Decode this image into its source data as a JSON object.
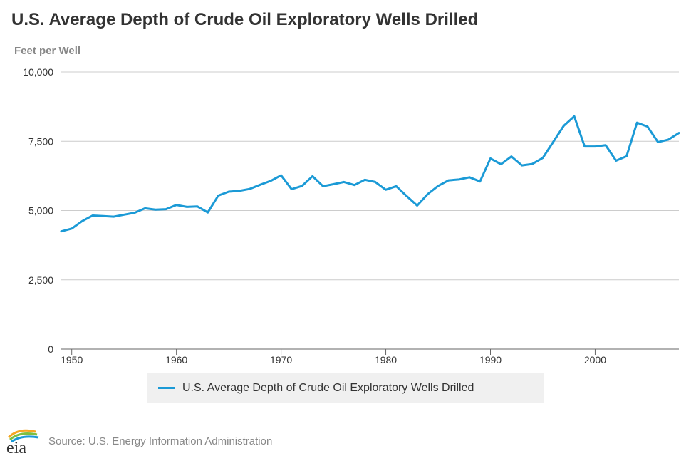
{
  "chart_data": {
    "type": "line",
    "title": "U.S. Average Depth of Crude Oil Exploratory Wells Drilled",
    "ylabel": "Feet per Well",
    "xlabel": "",
    "ylim": [
      0,
      10000
    ],
    "xlim": [
      1949,
      2008
    ],
    "y_ticks": [
      0,
      2500,
      5000,
      7500,
      10000
    ],
    "y_tick_labels": [
      "0",
      "2,500",
      "5,000",
      "7,500",
      "10,000"
    ],
    "x_ticks": [
      1950,
      1960,
      1970,
      1980,
      1990,
      2000
    ],
    "x_tick_labels": [
      "1950",
      "1960",
      "1970",
      "1980",
      "1990",
      "2000"
    ],
    "grid": "horizontal",
    "legend_position": "bottom",
    "series": [
      {
        "name": "U.S. Average Depth of Crude Oil Exploratory Wells Drilled",
        "color": "#1b9ad6",
        "x": [
          1949,
          1950,
          1951,
          1952,
          1953,
          1954,
          1955,
          1956,
          1957,
          1958,
          1959,
          1960,
          1961,
          1962,
          1963,
          1964,
          1965,
          1966,
          1967,
          1968,
          1969,
          1970,
          1971,
          1972,
          1973,
          1974,
          1975,
          1976,
          1977,
          1978,
          1979,
          1980,
          1981,
          1982,
          1983,
          1984,
          1985,
          1986,
          1987,
          1988,
          1989,
          1990,
          1991,
          1992,
          1993,
          1994,
          1995,
          1996,
          1997,
          1998,
          1999,
          2000,
          2001,
          2002,
          2003,
          2004,
          2005,
          2006,
          2007,
          2008
        ],
        "y": [
          4250,
          4350,
          4620,
          4820,
          4800,
          4780,
          4850,
          4920,
          5080,
          5030,
          5050,
          5200,
          5130,
          5150,
          4930,
          5540,
          5680,
          5710,
          5780,
          5930,
          6070,
          6270,
          5770,
          5890,
          6240,
          5880,
          5950,
          6030,
          5920,
          6110,
          6030,
          5750,
          5880,
          5520,
          5180,
          5590,
          5890,
          6090,
          6120,
          6200,
          6050,
          6880,
          6670,
          6950,
          6630,
          6680,
          6900,
          7480,
          8060,
          8400,
          7310,
          7310,
          7360,
          6800,
          6960,
          8170,
          8030,
          7470,
          7560,
          7800
        ]
      }
    ]
  },
  "source": "Source: U.S. Energy Information Administration",
  "logo_text": "eia",
  "colors": {
    "title": "#333333",
    "axis_label": "#888888",
    "grid": "#cccccc",
    "line": "#1b9ad6",
    "legend_bg": "#f0f0f0",
    "logo_swoosh": [
      "#f5a623",
      "#7fbf3f",
      "#1b9ad6"
    ]
  }
}
